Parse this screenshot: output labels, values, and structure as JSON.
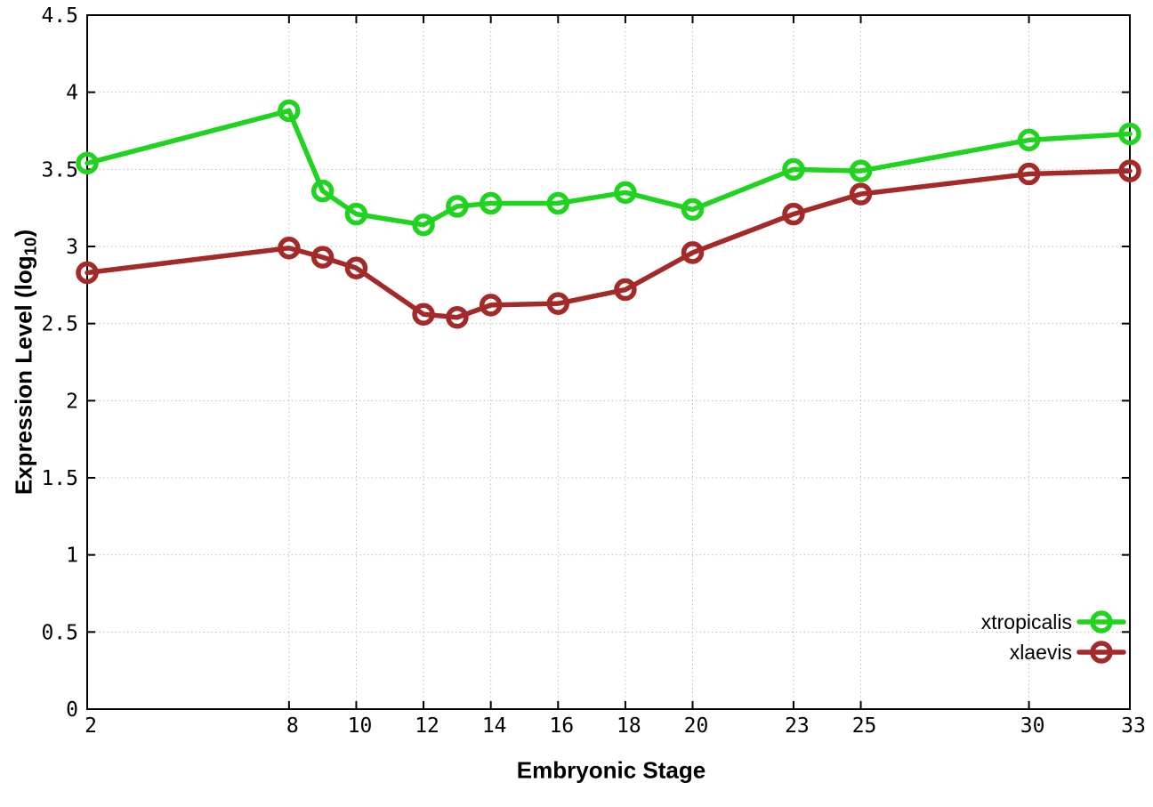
{
  "chart_data": {
    "type": "line",
    "title": "",
    "xlabel": "Embryonic Stage",
    "ylabel": "Expression Level (log10)",
    "ylabel_prefix": "Expression Level (log",
    "ylabel_sub": "10",
    "ylabel_suffix": ")",
    "x": [
      2,
      8,
      9,
      10,
      12,
      13,
      14,
      16,
      18,
      20,
      23,
      25,
      30,
      33
    ],
    "xlim": [
      2,
      33
    ],
    "ylim": [
      0,
      4.5
    ],
    "xtick_values": [
      2,
      8,
      10,
      12,
      14,
      16,
      18,
      20,
      23,
      25,
      30,
      33
    ],
    "xtick_labels": [
      "2",
      "8",
      "10",
      "12",
      "14",
      "16",
      "18",
      "20",
      "23",
      "25",
      "30",
      "33"
    ],
    "ytick_values": [
      0,
      0.5,
      1,
      1.5,
      2,
      2.5,
      3,
      3.5,
      4,
      4.5
    ],
    "ytick_labels": [
      "0",
      "0.5",
      "1",
      "1.5",
      "2",
      "2.5",
      "3",
      "3.5",
      "4",
      "4.5"
    ],
    "grid": true,
    "legend_position": "inside-right-lower",
    "series": [
      {
        "name": "xtropicalis",
        "color": "#1fd31f",
        "values": [
          3.54,
          3.88,
          3.36,
          3.21,
          3.14,
          3.26,
          3.28,
          3.28,
          3.35,
          3.24,
          3.5,
          3.49,
          3.69,
          3.73
        ]
      },
      {
        "name": "xlaevis",
        "color": "#a32a28",
        "values": [
          2.83,
          2.99,
          2.93,
          2.86,
          2.56,
          2.54,
          2.62,
          2.63,
          2.72,
          2.96,
          3.21,
          3.34,
          3.47,
          3.49
        ]
      }
    ]
  },
  "style": {
    "background": "#ffffff",
    "axis_color": "#000000",
    "grid_color": "#bcbcbc",
    "tick_label_color": "#000000",
    "legend_text_color": "#000000"
  }
}
